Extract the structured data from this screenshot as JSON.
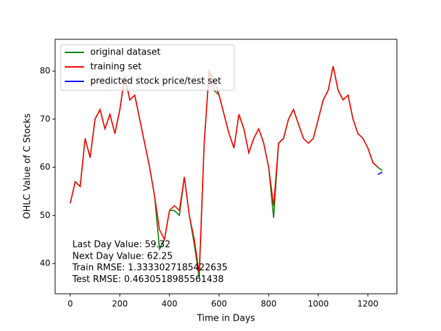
{
  "chart_data": {
    "type": "line",
    "x": [
      0,
      20,
      40,
      60,
      80,
      100,
      120,
      140,
      160,
      180,
      200,
      220,
      240,
      260,
      280,
      300,
      320,
      340,
      360,
      380,
      400,
      420,
      440,
      460,
      480,
      500,
      520,
      540,
      560,
      580,
      600,
      620,
      640,
      660,
      680,
      700,
      720,
      740,
      760,
      780,
      800,
      820,
      840,
      860,
      880,
      900,
      920,
      940,
      960,
      980,
      1000,
      1020,
      1040,
      1060,
      1080,
      1100,
      1120,
      1140,
      1160,
      1180,
      1200,
      1220,
      1240,
      1258
    ],
    "series": [
      {
        "name": "original dataset",
        "color": "#008000",
        "values": [
          52.5,
          57,
          56,
          66,
          62,
          70,
          72,
          68,
          71,
          67,
          72,
          79,
          74,
          75,
          70,
          65,
          60,
          54,
          43,
          45,
          51,
          51,
          50,
          58,
          50,
          44,
          37,
          65,
          80,
          76,
          75,
          71,
          67,
          64,
          71,
          68,
          63,
          66,
          68,
          65,
          60,
          49.5,
          65,
          66,
          70,
          72,
          69,
          66,
          65,
          66,
          70,
          74,
          76,
          81,
          76,
          74,
          75,
          70,
          67,
          66,
          64,
          61,
          60,
          59.32
        ]
      },
      {
        "name": "training set",
        "color": "#ff0000",
        "values": [
          52.5,
          57,
          56,
          66,
          62,
          70,
          72,
          68,
          71,
          67,
          72,
          79,
          74,
          75,
          70,
          65,
          60,
          54,
          47,
          45,
          51,
          52,
          51,
          58,
          50,
          45,
          38,
          65,
          80,
          78,
          75,
          71,
          67,
          64,
          71,
          68,
          63,
          66,
          68,
          65,
          60,
          52,
          65,
          66,
          70,
          72,
          69,
          66,
          65,
          66,
          70,
          74,
          76,
          81,
          76,
          74,
          75,
          70,
          67,
          66,
          64,
          61,
          60,
          null
        ]
      },
      {
        "name": "predicted stock price/test set",
        "color": "#0000ff",
        "values": [
          null,
          null,
          null,
          null,
          null,
          null,
          null,
          null,
          null,
          null,
          null,
          null,
          null,
          null,
          null,
          null,
          null,
          null,
          null,
          null,
          null,
          null,
          null,
          null,
          null,
          null,
          null,
          null,
          null,
          null,
          null,
          null,
          null,
          null,
          null,
          null,
          null,
          null,
          null,
          null,
          null,
          null,
          null,
          null,
          null,
          null,
          null,
          null,
          null,
          null,
          null,
          null,
          null,
          null,
          null,
          null,
          null,
          null,
          null,
          null,
          null,
          null,
          58.5,
          59
        ]
      }
    ],
    "xlabel": "Time in Days",
    "ylabel": "OHLC Value of C Stocks",
    "xlim": [
      -61,
      1317
    ],
    "ylim": [
      33.7,
      86.6
    ],
    "xticks": [
      0,
      200,
      400,
      600,
      800,
      1000,
      1200
    ],
    "yticks": [
      40,
      50,
      60,
      70,
      80
    ],
    "legend": "upper left",
    "annotations": [
      "Last Day Value: 59.32",
      "Next Day Value: 62.25",
      "Train RMSE: 1.3333027185422635",
      "Test RMSE: 0.4630518985561438"
    ]
  }
}
